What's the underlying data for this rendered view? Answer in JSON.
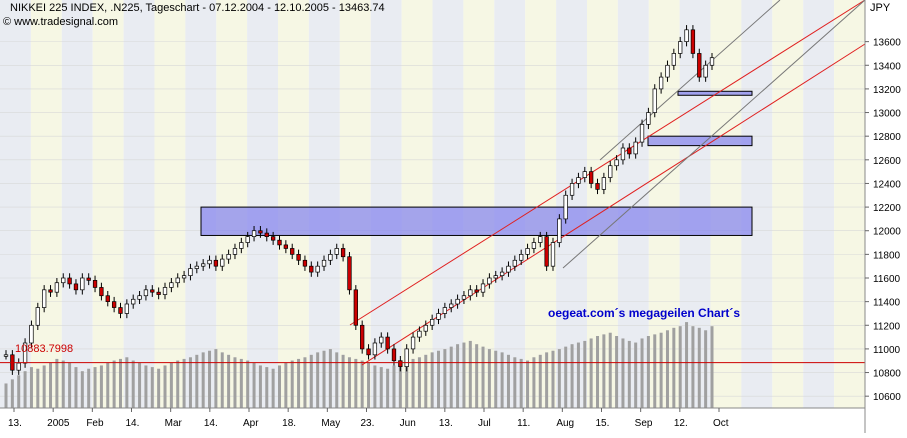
{
  "header": {
    "title": "NIKKEI 225 INDEX, .N225, Tageschart - 07.12.2004 - 12.10.2005 - 13463.74",
    "source": "© www.tradesignal.com",
    "currency": "JPY"
  },
  "annotation_text": "oegeat.com´s megageilen Chart´s",
  "level_label": "10883.7998",
  "chart_data": {
    "type": "candlestick",
    "title": "NIKKEI 225 INDEX, .N225, Tageschart - 07.12.2004 - 12.10.2005 - 13463.74",
    "ylabel": "JPY",
    "ylim": [
      10500,
      13800
    ],
    "grid": true,
    "y_ticks": [
      10600,
      10800,
      11000,
      11200,
      11400,
      11600,
      11800,
      12000,
      12200,
      12400,
      12600,
      12800,
      13000,
      13200,
      13400,
      13600
    ],
    "x_ticks": [
      "13.",
      "2005",
      "Feb",
      "14.",
      "Mar",
      "14.",
      "Apr",
      "18.",
      "May",
      "23.",
      "Jun",
      "13.",
      "Jul",
      "11.",
      "Aug",
      "15.",
      "Sep",
      "12.",
      "Oct"
    ],
    "horizontal_line": {
      "value": 10883.7998,
      "color": "#cc0000"
    },
    "resistance_zones": [
      {
        "from": 11960,
        "to": 12200
      },
      {
        "from": 12720,
        "to": 12800
      },
      {
        "from": 13160,
        "to": 13180
      }
    ],
    "closes": [
      10950,
      10820,
      10880,
      11050,
      11200,
      11350,
      11500,
      11480,
      11560,
      11600,
      11550,
      11500,
      11600,
      11580,
      11520,
      11450,
      11400,
      11350,
      11300,
      11380,
      11420,
      11450,
      11500,
      11480,
      11460,
      11520,
      11560,
      11600,
      11620,
      11680,
      11700,
      11720,
      11750,
      11700,
      11760,
      11800,
      11850,
      11900,
      11950,
      12000,
      11980,
      11950,
      11920,
      11880,
      11850,
      11800,
      11750,
      11700,
      11650,
      11700,
      11750,
      11800,
      11850,
      11780,
      11500,
      11200,
      11000,
      10950,
      11050,
      11100,
      11000,
      10900,
      10850,
      11000,
      11100,
      11150,
      11200,
      11250,
      11300,
      11350,
      11380,
      11420,
      11450,
      11500,
      11480,
      11550,
      11600,
      11620,
      11650,
      11700,
      11750,
      11800,
      11850,
      11900,
      11950,
      11700,
      11900,
      12100,
      12300,
      12400,
      12450,
      12500,
      12400,
      12350,
      12450,
      12550,
      12600,
      12700,
      12650,
      12750,
      12900,
      13000,
      13200,
      13300,
      13400,
      13500,
      13600,
      13700,
      13500,
      13300,
      13400,
      13464
    ],
    "volume": [
      30,
      35,
      40,
      45,
      50,
      48,
      52,
      55,
      60,
      58,
      55,
      50,
      45,
      48,
      50,
      52,
      55,
      58,
      60,
      62,
      58,
      55,
      52,
      50,
      48,
      52,
      55,
      58,
      60,
      62,
      65,
      68,
      70,
      72,
      68,
      65,
      62,
      60,
      58,
      55,
      52,
      50,
      48,
      52,
      55,
      58,
      60,
      62,
      65,
      68,
      70,
      72,
      68,
      65,
      62,
      60,
      58,
      55,
      52,
      50,
      48,
      52,
      55,
      58,
      60,
      62,
      65,
      68,
      70,
      72,
      75,
      78,
      80,
      82,
      78,
      75,
      72,
      70,
      68,
      65,
      62,
      60,
      58,
      62,
      65,
      68,
      70,
      72,
      75,
      78,
      80,
      82,
      85,
      88,
      90,
      92,
      88,
      85,
      82,
      80,
      85,
      88,
      90,
      92,
      95,
      98,
      100,
      105,
      100,
      98,
      95,
      100
    ],
    "volume_ylim": [
      0,
      110
    ]
  }
}
